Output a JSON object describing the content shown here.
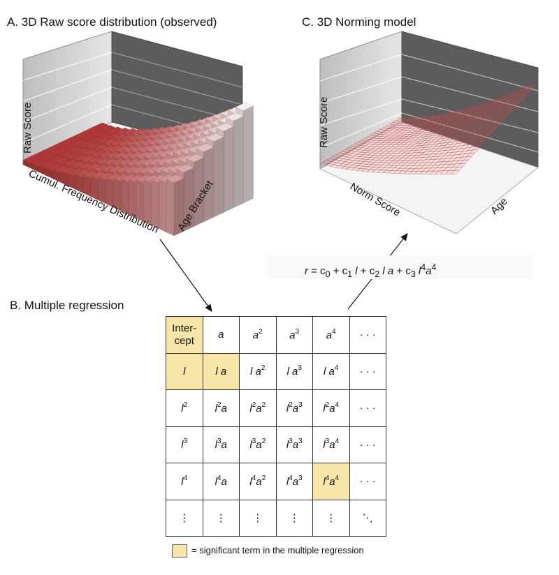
{
  "panels": {
    "a": {
      "title": "A. 3D Raw score distribution (observed)",
      "z_label": "Raw Score",
      "x_label": "Cumul. Frequency Distribution",
      "y_label": "Age Bracket"
    },
    "b": {
      "title": "B. Multiple regression"
    },
    "c": {
      "title": "C. 3D Norming model",
      "z_label": "Raw Score",
      "x_label": "Norm Score",
      "y_label": "Age"
    }
  },
  "formula": {
    "lhs": "r",
    "eq": " = c",
    "s0": "0",
    "p1": " + c",
    "s1": "1",
    "t1": " l",
    "p2": " + c",
    "s2": "2",
    "t2": " l a",
    "p3": " + c",
    "s3": "3",
    "t3": " l",
    "e3": "4",
    "t4": "a",
    "e4": "4"
  },
  "regression_table": {
    "rows": [
      [
        {
          "base": "Inter-\ncept",
          "sig": true,
          "italic": false
        },
        {
          "base": "a"
        },
        {
          "base": "a",
          "sup": "2"
        },
        {
          "base": "a",
          "sup": "3"
        },
        {
          "base": "a",
          "sup": "4"
        },
        {
          "base": "· · ·",
          "italic": false
        }
      ],
      [
        {
          "base": "l",
          "sig": true
        },
        {
          "base": "l  a",
          "sig": true
        },
        {
          "base": "l  a",
          "sup": "2"
        },
        {
          "base": "l  a",
          "sup": "3"
        },
        {
          "base": "l  a",
          "sup": "4"
        },
        {
          "base": "· · ·",
          "italic": false
        }
      ],
      [
        {
          "base": "l",
          "sup": "2"
        },
        {
          "base": "l",
          "sup": "2",
          "tail": "a"
        },
        {
          "base": "l",
          "sup": "2",
          "tail": "a",
          "tsup": "2"
        },
        {
          "base": "l",
          "sup": "2",
          "tail": "a",
          "tsup": "3"
        },
        {
          "base": "l",
          "sup": "2",
          "tail": "a",
          "tsup": "4"
        },
        {
          "base": "· · ·",
          "italic": false
        }
      ],
      [
        {
          "base": "l",
          "sup": "3"
        },
        {
          "base": "l",
          "sup": "3",
          "tail": "a"
        },
        {
          "base": "l",
          "sup": "3",
          "tail": "a",
          "tsup": "2"
        },
        {
          "base": "l",
          "sup": "3",
          "tail": "a",
          "tsup": "3"
        },
        {
          "base": "l",
          "sup": "3",
          "tail": "a",
          "tsup": "4"
        },
        {
          "base": "· · ·",
          "italic": false
        }
      ],
      [
        {
          "base": "l",
          "sup": "4"
        },
        {
          "base": "l",
          "sup": "4",
          "tail": "a"
        },
        {
          "base": "l",
          "sup": "4",
          "tail": "a",
          "tsup": "2"
        },
        {
          "base": "l",
          "sup": "4",
          "tail": "a",
          "tsup": "3"
        },
        {
          "base": "l",
          "sup": "4",
          "tail": "a",
          "tsup": "4",
          "sig": true
        },
        {
          "base": "· · ·",
          "italic": false
        }
      ],
      [
        {
          "base": "⋮",
          "italic": false
        },
        {
          "base": "⋮",
          "italic": false
        },
        {
          "base": "⋮",
          "italic": false
        },
        {
          "base": "⋮",
          "italic": false
        },
        {
          "base": "⋮",
          "italic": false
        },
        {
          "base": "⋱",
          "italic": false
        }
      ]
    ]
  },
  "legend": {
    "text": "= significant term in the multiple regression"
  },
  "colors": {
    "highlight": "#f8e6a8",
    "wall_light": "#d9d9d9",
    "wall_dark": "#5a5a5a",
    "bar_red": "#b03a3a",
    "mesh_red": "#c83c3c"
  }
}
